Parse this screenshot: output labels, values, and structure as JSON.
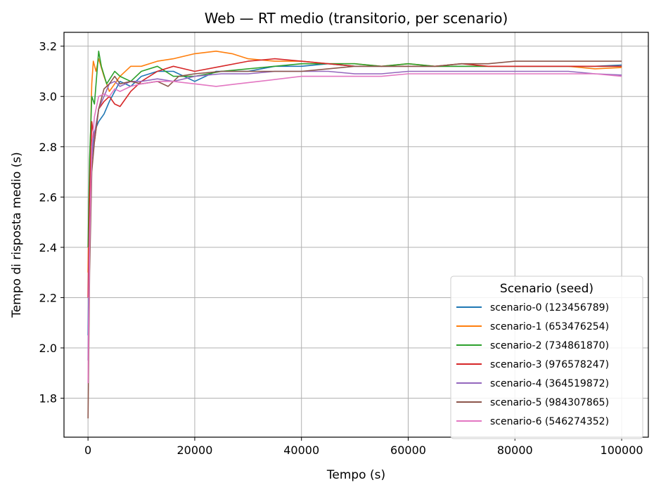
{
  "chart_data": {
    "type": "line",
    "title": "Web — RT medio (transitorio, per scenario)",
    "xlabel": "Tempo (s)",
    "ylabel": "Tempo di risposta medio (s)",
    "xlim": [
      -4500,
      105000
    ],
    "ylim": [
      1.645,
      3.255
    ],
    "x_ticks": [
      0,
      20000,
      40000,
      60000,
      80000,
      100000
    ],
    "x_tick_labels": [
      "0",
      "20000",
      "40000",
      "60000",
      "80000",
      "100000"
    ],
    "y_ticks": [
      1.8,
      2.0,
      2.2,
      2.4,
      2.6,
      2.8,
      3.0,
      3.2
    ],
    "y_tick_labels": [
      "1.8",
      "2.0",
      "2.2",
      "2.4",
      "2.6",
      "2.8",
      "3.0",
      "3.2"
    ],
    "grid": true,
    "legend": {
      "title": "Scenario (seed)",
      "placement": "lower-right"
    },
    "series": [
      {
        "name": "scenario-0 (123456789)",
        "color": "#1f77b4",
        "points": [
          [
            0,
            2.05
          ],
          [
            300,
            2.5
          ],
          [
            700,
            2.78
          ],
          [
            1200,
            2.86
          ],
          [
            2000,
            2.9
          ],
          [
            3000,
            2.93
          ],
          [
            4000,
            2.98
          ],
          [
            5000,
            3.02
          ],
          [
            6000,
            3.06
          ],
          [
            8000,
            3.04
          ],
          [
            10000,
            3.08
          ],
          [
            13000,
            3.1
          ],
          [
            16000,
            3.1
          ],
          [
            20000,
            3.06
          ],
          [
            24000,
            3.1
          ],
          [
            30000,
            3.1
          ],
          [
            35000,
            3.12
          ],
          [
            40000,
            3.12
          ],
          [
            45000,
            3.13
          ],
          [
            50000,
            3.12
          ],
          [
            55000,
            3.12
          ],
          [
            60000,
            3.12
          ],
          [
            65000,
            3.12
          ],
          [
            70000,
            3.12
          ],
          [
            75000,
            3.12
          ],
          [
            80000,
            3.12
          ],
          [
            85000,
            3.12
          ],
          [
            90000,
            3.12
          ],
          [
            95000,
            3.12
          ],
          [
            100000,
            3.125
          ]
        ]
      },
      {
        "name": "scenario-1 (653476254)",
        "color": "#ff7f0e",
        "points": [
          [
            0,
            2.3
          ],
          [
            300,
            2.7
          ],
          [
            700,
            3.05
          ],
          [
            1000,
            3.14
          ],
          [
            1500,
            3.1
          ],
          [
            2000,
            3.15
          ],
          [
            3000,
            3.08
          ],
          [
            4000,
            3.02
          ],
          [
            6000,
            3.08
          ],
          [
            8000,
            3.12
          ],
          [
            10000,
            3.12
          ],
          [
            13000,
            3.14
          ],
          [
            16000,
            3.15
          ],
          [
            20000,
            3.17
          ],
          [
            24000,
            3.18
          ],
          [
            27000,
            3.17
          ],
          [
            30000,
            3.15
          ],
          [
            35000,
            3.14
          ],
          [
            40000,
            3.14
          ],
          [
            45000,
            3.13
          ],
          [
            50000,
            3.13
          ],
          [
            55000,
            3.12
          ],
          [
            60000,
            3.13
          ],
          [
            65000,
            3.12
          ],
          [
            70000,
            3.12
          ],
          [
            75000,
            3.12
          ],
          [
            80000,
            3.12
          ],
          [
            85000,
            3.12
          ],
          [
            90000,
            3.12
          ],
          [
            95000,
            3.11
          ],
          [
            100000,
            3.115
          ]
        ]
      },
      {
        "name": "scenario-2 (734861870)",
        "color": "#2ca02c",
        "points": [
          [
            0,
            2.4
          ],
          [
            300,
            2.75
          ],
          [
            700,
            3.0
          ],
          [
            1200,
            2.97
          ],
          [
            2000,
            3.18
          ],
          [
            2500,
            3.12
          ],
          [
            3500,
            3.05
          ],
          [
            5000,
            3.1
          ],
          [
            6000,
            3.08
          ],
          [
            8000,
            3.06
          ],
          [
            10000,
            3.1
          ],
          [
            13000,
            3.12
          ],
          [
            16000,
            3.08
          ],
          [
            20000,
            3.08
          ],
          [
            25000,
            3.1
          ],
          [
            30000,
            3.11
          ],
          [
            35000,
            3.12
          ],
          [
            40000,
            3.13
          ],
          [
            45000,
            3.13
          ],
          [
            50000,
            3.13
          ],
          [
            55000,
            3.12
          ],
          [
            60000,
            3.13
          ],
          [
            65000,
            3.12
          ],
          [
            70000,
            3.12
          ],
          [
            75000,
            3.12
          ],
          [
            80000,
            3.12
          ],
          [
            85000,
            3.12
          ],
          [
            90000,
            3.12
          ],
          [
            95000,
            3.12
          ],
          [
            100000,
            3.12
          ]
        ]
      },
      {
        "name": "scenario-3 (976578247)",
        "color": "#d62728",
        "points": [
          [
            0,
            2.2
          ],
          [
            300,
            2.6
          ],
          [
            700,
            2.9
          ],
          [
            1200,
            2.82
          ],
          [
            2000,
            2.95
          ],
          [
            3000,
            2.98
          ],
          [
            4000,
            3.0
          ],
          [
            5000,
            2.97
          ],
          [
            6000,
            2.96
          ],
          [
            8000,
            3.02
          ],
          [
            10000,
            3.06
          ],
          [
            13000,
            3.1
          ],
          [
            16000,
            3.12
          ],
          [
            20000,
            3.1
          ],
          [
            25000,
            3.12
          ],
          [
            30000,
            3.14
          ],
          [
            35000,
            3.15
          ],
          [
            40000,
            3.14
          ],
          [
            45000,
            3.13
          ],
          [
            50000,
            3.12
          ],
          [
            55000,
            3.12
          ],
          [
            60000,
            3.12
          ],
          [
            65000,
            3.12
          ],
          [
            70000,
            3.13
          ],
          [
            75000,
            3.12
          ],
          [
            80000,
            3.12
          ],
          [
            85000,
            3.12
          ],
          [
            90000,
            3.12
          ],
          [
            95000,
            3.12
          ],
          [
            100000,
            3.12
          ]
        ]
      },
      {
        "name": "scenario-4 (364519872)",
        "color": "#9467bd",
        "points": [
          [
            0,
            1.95
          ],
          [
            300,
            2.45
          ],
          [
            700,
            2.75
          ],
          [
            1200,
            2.85
          ],
          [
            2000,
            2.95
          ],
          [
            3000,
            3.0
          ],
          [
            4000,
            3.05
          ],
          [
            5000,
            3.06
          ],
          [
            6000,
            3.04
          ],
          [
            8000,
            3.06
          ],
          [
            10000,
            3.06
          ],
          [
            13000,
            3.07
          ],
          [
            16000,
            3.06
          ],
          [
            20000,
            3.08
          ],
          [
            25000,
            3.09
          ],
          [
            30000,
            3.09
          ],
          [
            35000,
            3.1
          ],
          [
            40000,
            3.1
          ],
          [
            45000,
            3.1
          ],
          [
            50000,
            3.09
          ],
          [
            55000,
            3.09
          ],
          [
            60000,
            3.1
          ],
          [
            65000,
            3.1
          ],
          [
            70000,
            3.1
          ],
          [
            75000,
            3.1
          ],
          [
            80000,
            3.1
          ],
          [
            85000,
            3.1
          ],
          [
            90000,
            3.1
          ],
          [
            95000,
            3.09
          ],
          [
            100000,
            3.085
          ]
        ]
      },
      {
        "name": "scenario-5 (984307865)",
        "color": "#8c564b",
        "points": [
          [
            0,
            1.72
          ],
          [
            300,
            2.3
          ],
          [
            700,
            2.7
          ],
          [
            1200,
            2.82
          ],
          [
            2000,
            2.95
          ],
          [
            3000,
            3.03
          ],
          [
            4000,
            3.05
          ],
          [
            5000,
            3.08
          ],
          [
            6000,
            3.05
          ],
          [
            8000,
            3.06
          ],
          [
            10000,
            3.05
          ],
          [
            13000,
            3.06
          ],
          [
            15000,
            3.04
          ],
          [
            17000,
            3.08
          ],
          [
            20000,
            3.09
          ],
          [
            25000,
            3.1
          ],
          [
            30000,
            3.1
          ],
          [
            35000,
            3.1
          ],
          [
            40000,
            3.1
          ],
          [
            45000,
            3.11
          ],
          [
            50000,
            3.12
          ],
          [
            55000,
            3.12
          ],
          [
            60000,
            3.12
          ],
          [
            65000,
            3.12
          ],
          [
            70000,
            3.13
          ],
          [
            75000,
            3.13
          ],
          [
            80000,
            3.14
          ],
          [
            85000,
            3.14
          ],
          [
            90000,
            3.14
          ],
          [
            95000,
            3.14
          ],
          [
            100000,
            3.14
          ]
        ]
      },
      {
        "name": "scenario-6 (546274352)",
        "color": "#e377c2",
        "points": [
          [
            0,
            1.86
          ],
          [
            300,
            2.4
          ],
          [
            700,
            2.8
          ],
          [
            1200,
            2.92
          ],
          [
            2000,
            3.0
          ],
          [
            3000,
            3.01
          ],
          [
            4000,
            3.0
          ],
          [
            5000,
            3.03
          ],
          [
            6000,
            3.02
          ],
          [
            8000,
            3.04
          ],
          [
            10000,
            3.05
          ],
          [
            13000,
            3.06
          ],
          [
            16000,
            3.06
          ],
          [
            20000,
            3.05
          ],
          [
            24000,
            3.04
          ],
          [
            28000,
            3.05
          ],
          [
            32000,
            3.06
          ],
          [
            36000,
            3.07
          ],
          [
            40000,
            3.08
          ],
          [
            45000,
            3.08
          ],
          [
            50000,
            3.08
          ],
          [
            55000,
            3.08
          ],
          [
            60000,
            3.09
          ],
          [
            65000,
            3.09
          ],
          [
            70000,
            3.09
          ],
          [
            75000,
            3.09
          ],
          [
            80000,
            3.09
          ],
          [
            85000,
            3.09
          ],
          [
            90000,
            3.09
          ],
          [
            95000,
            3.09
          ],
          [
            100000,
            3.08
          ]
        ]
      }
    ]
  }
}
